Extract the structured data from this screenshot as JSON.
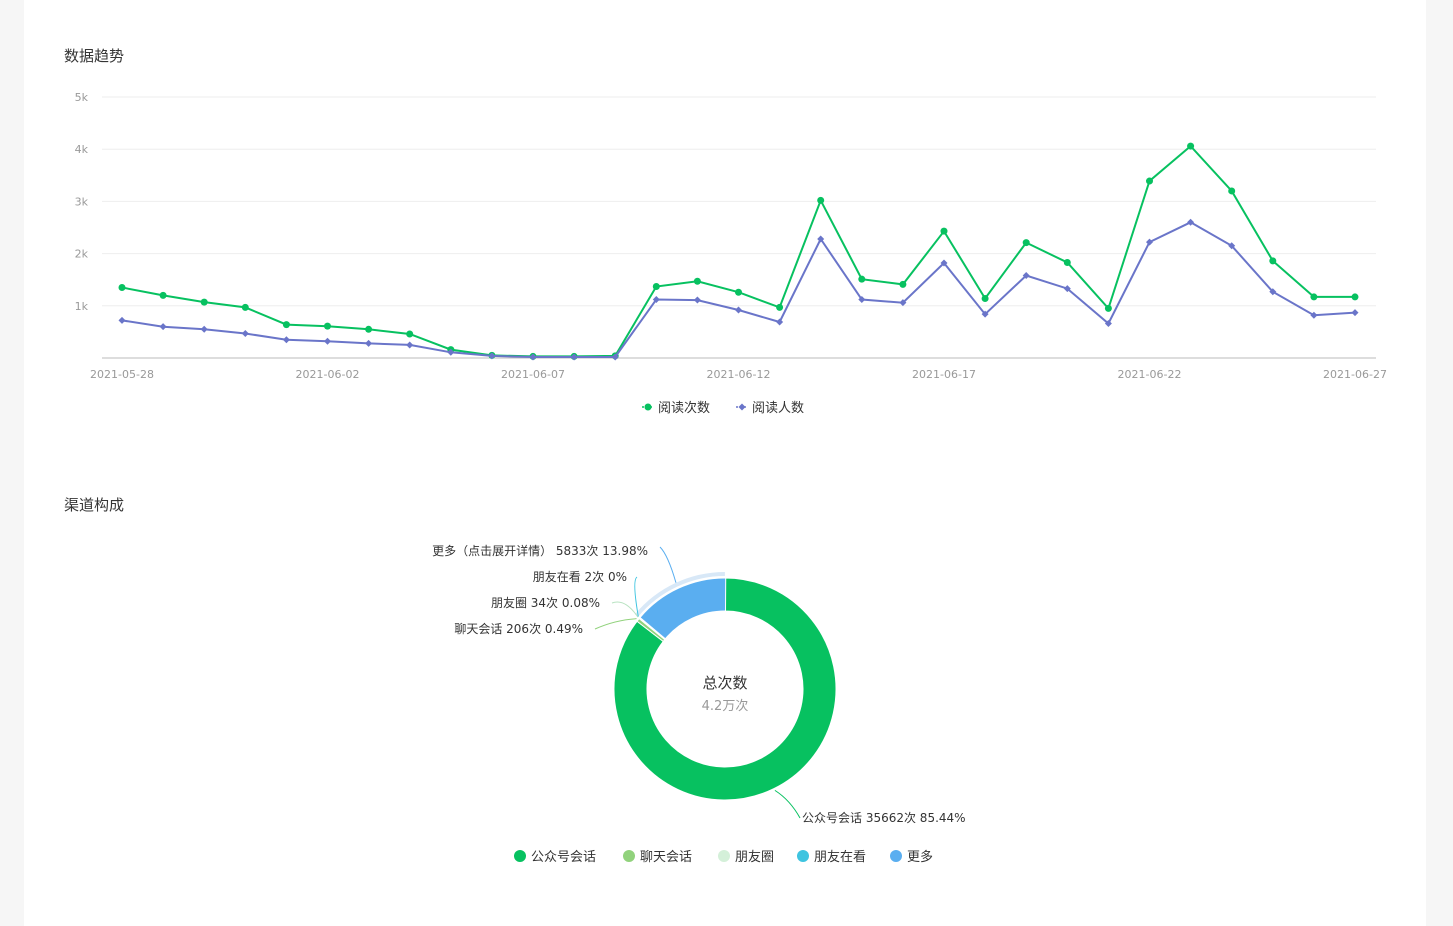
{
  "sections": {
    "trend_title": "数据趋势",
    "channel_title": "渠道构成"
  },
  "colors": {
    "reads": "#07c160",
    "readers": "#6a75c9",
    "grid": "#eeeeee",
    "axis": "#bbbbbb",
    "tick": "#999999"
  },
  "chart_data": [
    {
      "type": "line",
      "x": [
        "2021-05-28",
        "2021-05-29",
        "2021-05-30",
        "2021-05-31",
        "2021-06-01",
        "2021-06-02",
        "2021-06-03",
        "2021-06-04",
        "2021-06-05",
        "2021-06-06",
        "2021-06-07",
        "2021-06-08",
        "2021-06-09",
        "2021-06-10",
        "2021-06-11",
        "2021-06-12",
        "2021-06-13",
        "2021-06-14",
        "2021-06-15",
        "2021-06-16",
        "2021-06-17",
        "2021-06-18",
        "2021-06-19",
        "2021-06-20",
        "2021-06-21",
        "2021-06-22",
        "2021-06-23",
        "2021-06-24",
        "2021-06-25",
        "2021-06-26",
        "2021-06-27"
      ],
      "x_ticks": [
        "2021-05-28",
        "2021-06-02",
        "2021-06-07",
        "2021-06-12",
        "2021-06-17",
        "2021-06-22",
        "2021-06-27"
      ],
      "y_ticks": [
        "1k",
        "2k",
        "3k",
        "4k",
        "5k"
      ],
      "ylim": [
        0,
        5000
      ],
      "series": [
        {
          "name": "阅读次数",
          "color": "#07c160",
          "marker": "circle",
          "values": [
            1350,
            1200,
            1070,
            970,
            640,
            610,
            550,
            460,
            160,
            50,
            30,
            30,
            40,
            1370,
            1470,
            1260,
            970,
            3020,
            1510,
            1410,
            2430,
            1140,
            2210,
            1830,
            950,
            3390,
            4060,
            3200,
            1860,
            1170,
            1170
          ]
        },
        {
          "name": "阅读人数",
          "color": "#6a75c9",
          "marker": "diamond",
          "values": [
            720,
            600,
            550,
            470,
            350,
            320,
            280,
            250,
            110,
            40,
            20,
            20,
            20,
            1120,
            1110,
            920,
            690,
            2280,
            1120,
            1060,
            1820,
            840,
            1580,
            1330,
            660,
            2220,
            2600,
            2150,
            1270,
            820,
            870
          ]
        }
      ],
      "legend": [
        "阅读次数",
        "阅读人数"
      ]
    },
    {
      "type": "pie",
      "center_label": "总次数",
      "center_value": "4.2万次",
      "slices": [
        {
          "name": "公众号会话",
          "value": 35662,
          "label": "公众号会话 35662次 85.44%",
          "color": "#07c160"
        },
        {
          "name": "聊天会话",
          "value": 206,
          "label": "聊天会话 206次 0.49%",
          "color": "#91d27c"
        },
        {
          "name": "朋友圈",
          "value": 34,
          "label": "朋友圈 34次 0.08%",
          "color": "#d4f0d9"
        },
        {
          "name": "朋友在看",
          "value": 2,
          "label": "朋友在看 2次 0%",
          "color": "#3ec4e0"
        },
        {
          "name": "更多",
          "value": 5833,
          "label": "更多（点击展开详情） 5833次 13.98%",
          "color": "#5aaef0"
        }
      ],
      "legend": [
        "公众号会话",
        "聊天会话",
        "朋友圈",
        "朋友在看",
        "更多"
      ]
    }
  ]
}
